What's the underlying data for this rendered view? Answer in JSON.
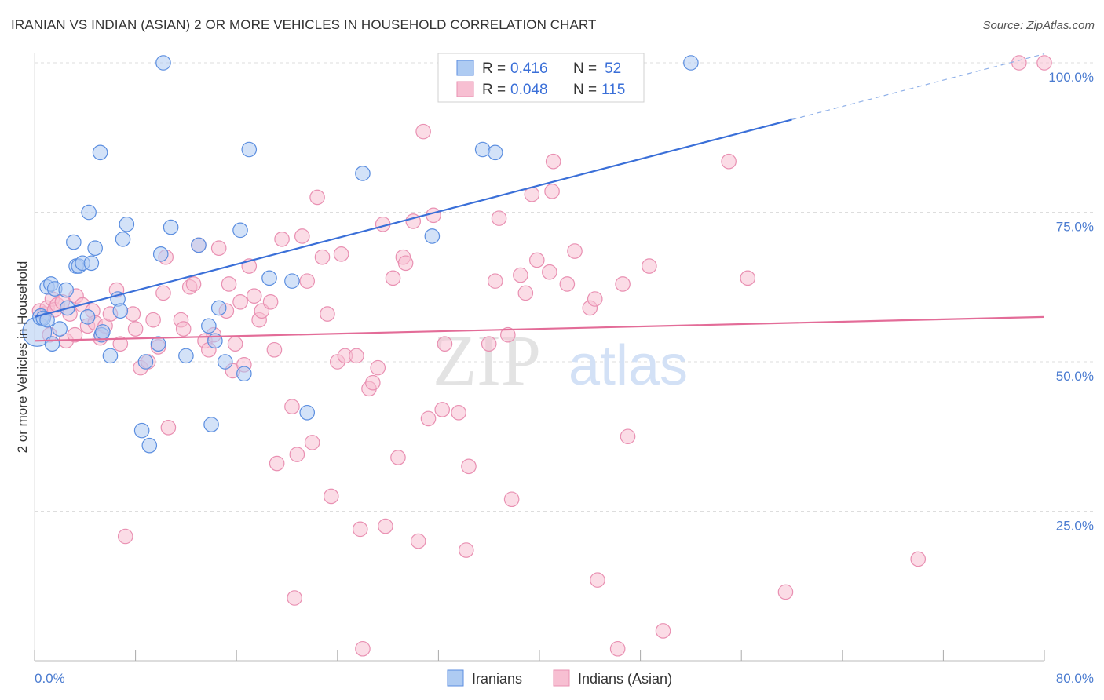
{
  "title": "IRANIAN VS INDIAN (ASIAN) 2 OR MORE VEHICLES IN HOUSEHOLD CORRELATION CHART",
  "source": "Source: ZipAtlas.com",
  "watermark": {
    "zip": "ZIP",
    "atlas": "atlas"
  },
  "colors": {
    "blue": "#3a6fd8",
    "blue_fill": "#aecbf2",
    "blue_stroke": "#5b8ee0",
    "pink": "#e36c98",
    "pink_fill": "#f7bfd2",
    "pink_stroke": "#e990b2",
    "tick": "#4a7bd0",
    "grid": "#dddddd"
  },
  "stats_box": {
    "r_label": "R =",
    "n_label": "N =",
    "rows": [
      {
        "series": "Iranians",
        "r": "0.416",
        "n": "52"
      },
      {
        "series": "Indians (Asian)",
        "r": "0.048",
        "n": "115"
      }
    ]
  },
  "chart_data": {
    "type": "scatter",
    "title": "IRANIAN VS INDIAN (ASIAN) 2 OR MORE VEHICLES IN HOUSEHOLD CORRELATION CHART",
    "xlabel": "",
    "ylabel": "2 or more Vehicles in Household",
    "xlim": [
      0,
      80
    ],
    "ylim": [
      0,
      100
    ],
    "x_tick_labels": {
      "left": "0.0%",
      "right": "80.0%"
    },
    "y_ticks": [
      {
        "value": 100,
        "label": "100.0%"
      },
      {
        "value": 75,
        "label": "75.0%"
      },
      {
        "value": 50,
        "label": "50.0%"
      },
      {
        "value": 25,
        "label": "25.0%"
      }
    ],
    "grid": true,
    "legend_position": "bottom-center",
    "series": [
      {
        "name": "Iranians",
        "color": "blue",
        "trend": {
          "x0": 0,
          "y0": 57.5,
          "x1": 60,
          "y1": 90.5,
          "dash_to_x": 80,
          "dash_to_y": 101.5
        },
        "points": [
          [
            0.2,
            55.0,
            16
          ],
          [
            0.5,
            57.5,
            9
          ],
          [
            0.7,
            57.3,
            8
          ],
          [
            1.0,
            57.0,
            8
          ],
          [
            1.0,
            62.5,
            8
          ],
          [
            1.3,
            63.0,
            8
          ],
          [
            1.4,
            53.0,
            8
          ],
          [
            1.6,
            62.2,
            8
          ],
          [
            2.0,
            55.5,
            8
          ],
          [
            2.5,
            62.0,
            8
          ],
          [
            2.6,
            59.0,
            8
          ],
          [
            3.1,
            70.0,
            8
          ],
          [
            3.3,
            66.0,
            8
          ],
          [
            3.5,
            66.0,
            8
          ],
          [
            3.8,
            66.5,
            8
          ],
          [
            4.2,
            57.5,
            8
          ],
          [
            4.3,
            75.0,
            8
          ],
          [
            4.5,
            66.5,
            8
          ],
          [
            4.8,
            69.0,
            8
          ],
          [
            5.2,
            85.0,
            8
          ],
          [
            5.3,
            54.5,
            8
          ],
          [
            5.4,
            55.0,
            8
          ],
          [
            6.0,
            51.0,
            8
          ],
          [
            6.6,
            60.5,
            8
          ],
          [
            6.8,
            58.5,
            8
          ],
          [
            7.0,
            70.5,
            8
          ],
          [
            7.3,
            73.0,
            8
          ],
          [
            8.5,
            38.5,
            8
          ],
          [
            8.8,
            50.0,
            8
          ],
          [
            9.1,
            36.0,
            8
          ],
          [
            9.8,
            53.0,
            8
          ],
          [
            10.0,
            68.0,
            8
          ],
          [
            10.2,
            100.0,
            8
          ],
          [
            10.8,
            72.5,
            8
          ],
          [
            12.0,
            51.0,
            8
          ],
          [
            13.0,
            69.5,
            8
          ],
          [
            13.8,
            56.0,
            8
          ],
          [
            14.0,
            39.5,
            8
          ],
          [
            14.3,
            53.5,
            8
          ],
          [
            14.6,
            59.0,
            8
          ],
          [
            15.1,
            50.0,
            8
          ],
          [
            16.3,
            72.0,
            8
          ],
          [
            16.6,
            48.0,
            8
          ],
          [
            17.0,
            85.5,
            8
          ],
          [
            18.6,
            64.0,
            8
          ],
          [
            20.4,
            63.5,
            8
          ],
          [
            21.6,
            41.5,
            8
          ],
          [
            26.0,
            81.5,
            8
          ],
          [
            31.5,
            71.0,
            8
          ],
          [
            35.5,
            85.5,
            8
          ],
          [
            36.5,
            85.0,
            8
          ],
          [
            52.0,
            100.0,
            8
          ]
        ]
      },
      {
        "name": "Indians (Asian)",
        "color": "pink",
        "trend": {
          "x0": 0,
          "y0": 53.5,
          "x1": 80,
          "y1": 57.5
        },
        "points": [
          [
            0.4,
            58.5,
            8
          ],
          [
            0.8,
            58.0,
            8
          ],
          [
            1.0,
            59.0,
            8
          ],
          [
            1.2,
            54.5,
            8
          ],
          [
            1.4,
            60.5,
            8
          ],
          [
            1.6,
            58.7,
            8
          ],
          [
            1.8,
            59.5,
            8
          ],
          [
            2.2,
            60.0,
            8
          ],
          [
            2.5,
            53.5,
            8
          ],
          [
            2.8,
            58.0,
            8
          ],
          [
            3.2,
            54.5,
            8
          ],
          [
            3.3,
            61.0,
            8
          ],
          [
            3.8,
            59.5,
            8
          ],
          [
            4.2,
            56.0,
            8
          ],
          [
            4.6,
            58.5,
            8
          ],
          [
            4.8,
            56.5,
            8
          ],
          [
            5.2,
            54.0,
            8
          ],
          [
            5.6,
            56.0,
            8
          ],
          [
            6.0,
            58.0,
            8
          ],
          [
            6.5,
            62.0,
            8
          ],
          [
            6.8,
            53.0,
            8
          ],
          [
            7.2,
            20.8,
            8
          ],
          [
            7.8,
            58.0,
            8
          ],
          [
            8.0,
            55.5,
            8
          ],
          [
            8.4,
            49.0,
            8
          ],
          [
            9.0,
            50.0,
            8
          ],
          [
            9.4,
            57.0,
            8
          ],
          [
            9.8,
            52.5,
            8
          ],
          [
            10.2,
            61.5,
            8
          ],
          [
            10.4,
            67.5,
            8
          ],
          [
            10.6,
            39.0,
            8
          ],
          [
            11.6,
            57.0,
            8
          ],
          [
            11.8,
            55.5,
            8
          ],
          [
            12.3,
            62.5,
            8
          ],
          [
            12.6,
            63.0,
            8
          ],
          [
            13.0,
            69.5,
            8
          ],
          [
            13.5,
            53.5,
            8
          ],
          [
            13.8,
            52.0,
            8
          ],
          [
            14.2,
            54.5,
            8
          ],
          [
            14.6,
            69.0,
            8
          ],
          [
            15.2,
            58.5,
            8
          ],
          [
            15.4,
            63.0,
            8
          ],
          [
            15.7,
            48.5,
            8
          ],
          [
            15.9,
            53.0,
            8
          ],
          [
            16.3,
            60.0,
            8
          ],
          [
            16.6,
            49.5,
            8
          ],
          [
            17.0,
            66.0,
            8
          ],
          [
            17.4,
            61.0,
            8
          ],
          [
            17.8,
            57.0,
            8
          ],
          [
            18.0,
            58.5,
            8
          ],
          [
            18.7,
            60.0,
            8
          ],
          [
            19.0,
            52.0,
            8
          ],
          [
            19.2,
            33.0,
            8
          ],
          [
            19.6,
            70.5,
            8
          ],
          [
            20.4,
            42.5,
            8
          ],
          [
            20.6,
            10.5,
            8
          ],
          [
            20.8,
            34.5,
            8
          ],
          [
            21.2,
            71.0,
            8
          ],
          [
            21.6,
            63.5,
            8
          ],
          [
            22.0,
            36.5,
            8
          ],
          [
            22.4,
            77.5,
            8
          ],
          [
            22.8,
            67.5,
            8
          ],
          [
            23.2,
            58.0,
            8
          ],
          [
            23.5,
            27.5,
            8
          ],
          [
            24.0,
            50.0,
            8
          ],
          [
            24.3,
            68.0,
            8
          ],
          [
            24.6,
            51.0,
            8
          ],
          [
            25.5,
            51.0,
            8
          ],
          [
            25.8,
            22.0,
            8
          ],
          [
            26.0,
            2.0,
            8
          ],
          [
            26.5,
            45.5,
            8
          ],
          [
            26.8,
            46.5,
            8
          ],
          [
            27.2,
            49.0,
            8
          ],
          [
            27.6,
            73.0,
            8
          ],
          [
            27.8,
            22.5,
            8
          ],
          [
            28.4,
            64.0,
            8
          ],
          [
            28.8,
            34.0,
            8
          ],
          [
            29.2,
            67.5,
            8
          ],
          [
            29.4,
            66.5,
            8
          ],
          [
            30.0,
            73.5,
            8
          ],
          [
            30.4,
            20.0,
            8
          ],
          [
            30.8,
            88.5,
            8
          ],
          [
            31.2,
            40.5,
            8
          ],
          [
            31.6,
            74.5,
            8
          ],
          [
            32.3,
            42.0,
            8
          ],
          [
            32.5,
            53.0,
            8
          ],
          [
            33.6,
            41.5,
            8
          ],
          [
            34.2,
            18.5,
            8
          ],
          [
            34.4,
            32.5,
            8
          ],
          [
            36.0,
            53.0,
            8
          ],
          [
            36.5,
            63.5,
            8
          ],
          [
            36.8,
            74.0,
            8
          ],
          [
            37.5,
            54.5,
            8
          ],
          [
            37.8,
            27.0,
            8
          ],
          [
            38.5,
            64.5,
            8
          ],
          [
            38.9,
            61.5,
            8
          ],
          [
            39.4,
            78.0,
            8
          ],
          [
            39.8,
            67.0,
            8
          ],
          [
            40.8,
            65.0,
            8
          ],
          [
            41.0,
            78.5,
            8
          ],
          [
            41.1,
            83.5,
            8
          ],
          [
            42.2,
            63.0,
            8
          ],
          [
            42.8,
            68.5,
            8
          ],
          [
            44.0,
            59.0,
            8
          ],
          [
            44.4,
            60.5,
            8
          ],
          [
            44.6,
            13.5,
            8
          ],
          [
            46.2,
            2.0,
            8
          ],
          [
            46.6,
            63.0,
            8
          ],
          [
            47.0,
            37.5,
            8
          ],
          [
            48.7,
            66.0,
            8
          ],
          [
            49.8,
            5.0,
            8
          ],
          [
            55.0,
            83.5,
            8
          ],
          [
            56.5,
            64.0,
            8
          ],
          [
            59.5,
            11.5,
            8
          ],
          [
            70.0,
            17.0,
            8
          ],
          [
            78.0,
            100.0,
            8
          ],
          [
            80.0,
            100.0,
            8
          ]
        ]
      }
    ]
  }
}
